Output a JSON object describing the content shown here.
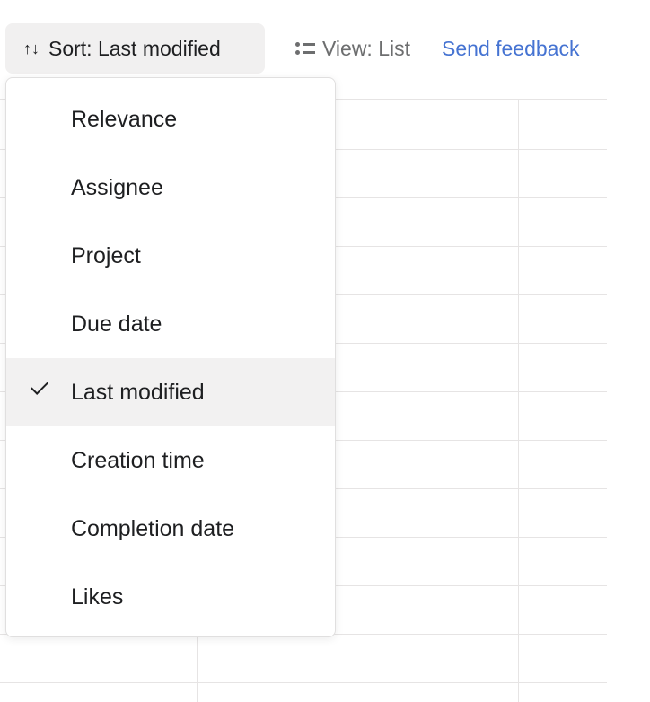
{
  "toolbar": {
    "sort_label": "Sort: Last modified",
    "view_label": "View: List",
    "feedback_label": "Send feedback",
    "sort_icon": "arrows-up-down-icon",
    "view_icon": "list-icon"
  },
  "sort_menu": {
    "items": [
      {
        "label": "Relevance",
        "selected": false
      },
      {
        "label": "Assignee",
        "selected": false
      },
      {
        "label": "Project",
        "selected": false
      },
      {
        "label": "Due date",
        "selected": false
      },
      {
        "label": "Last modified",
        "selected": true
      },
      {
        "label": "Creation time",
        "selected": false
      },
      {
        "label": "Completion date",
        "selected": false
      },
      {
        "label": "Likes",
        "selected": false
      }
    ]
  },
  "colors": {
    "accent": "#4573d2",
    "selected_bg": "#f2f1f1"
  }
}
